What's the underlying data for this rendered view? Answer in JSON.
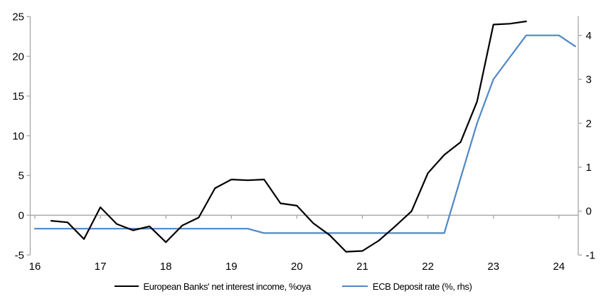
{
  "chart_data": {
    "type": "line",
    "title": "",
    "xlabel": "",
    "ylabel": "",
    "x_axis": {
      "tick_values": [
        16,
        17,
        18,
        19,
        20,
        21,
        22,
        23,
        24
      ],
      "tick_labels": [
        "16",
        "17",
        "18",
        "19",
        "20",
        "21",
        "22",
        "23",
        "24"
      ],
      "note": "years 2016-2024, quarterly data"
    },
    "left_axis": {
      "ticks": [
        25,
        20,
        15,
        10,
        5,
        0,
        -5
      ],
      "range": [
        -5,
        25
      ]
    },
    "right_axis": {
      "ticks": [
        4,
        3,
        2,
        1,
        0,
        -1
      ],
      "range": [
        -1,
        4.4
      ]
    },
    "grid": false,
    "zero_line": true,
    "legend_position": "bottom",
    "series": [
      {
        "name": "European Banks' net interest income, %oya",
        "color": "#000000",
        "axis": "left",
        "x": [
          16.25,
          16.5,
          16.75,
          17.0,
          17.25,
          17.5,
          17.75,
          18.0,
          18.25,
          18.5,
          18.75,
          19.0,
          19.25,
          19.5,
          19.75,
          20.0,
          20.25,
          20.5,
          20.75,
          21.0,
          21.25,
          21.5,
          21.75,
          22.0,
          22.25,
          22.5,
          22.75,
          23.0,
          23.25,
          23.5
        ],
        "values": [
          -0.7,
          -0.9,
          -3.0,
          1.0,
          -1.1,
          -1.9,
          -1.4,
          -3.4,
          -1.3,
          -0.3,
          3.4,
          4.5,
          4.4,
          4.5,
          1.5,
          1.2,
          -1.0,
          -2.5,
          -4.6,
          -4.5,
          -3.2,
          -1.4,
          0.5,
          5.3,
          7.6,
          9.2,
          14.3,
          24.0,
          24.1,
          24.4
        ]
      },
      {
        "name": "ECB Deposit rate (%, rhs)",
        "color": "#4f87c5",
        "axis": "right",
        "x": [
          16.0,
          16.25,
          16.5,
          16.75,
          17.0,
          17.25,
          17.5,
          17.75,
          18.0,
          18.25,
          18.5,
          18.75,
          19.0,
          19.25,
          19.5,
          19.75,
          20.0,
          20.25,
          20.5,
          20.75,
          21.0,
          21.25,
          21.5,
          21.75,
          22.0,
          22.25,
          22.5,
          22.75,
          23.0,
          23.25,
          23.5,
          23.75,
          24.0,
          24.25
        ],
        "values": [
          -0.4,
          -0.4,
          -0.4,
          -0.4,
          -0.4,
          -0.4,
          -0.4,
          -0.4,
          -0.4,
          -0.4,
          -0.4,
          -0.4,
          -0.4,
          -0.4,
          -0.5,
          -0.5,
          -0.5,
          -0.5,
          -0.5,
          -0.5,
          -0.5,
          -0.5,
          -0.5,
          -0.5,
          -0.5,
          -0.5,
          0.75,
          2.0,
          3.0,
          3.5,
          4.0,
          4.0,
          4.0,
          3.75
        ]
      }
    ]
  },
  "colors": {
    "axis": "#a6a6a6",
    "text": "#000000",
    "background": "#ffffff",
    "series_nii": "#000000",
    "series_ecb": "#4f87c5"
  }
}
